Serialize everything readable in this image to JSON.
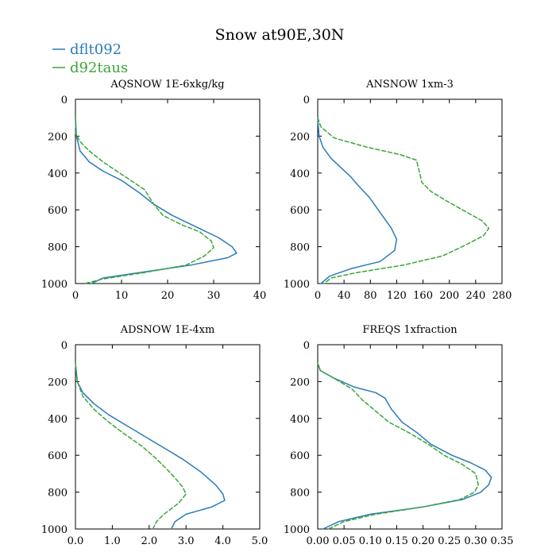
{
  "figure": {
    "title": "Snow at90E,30N",
    "legend": [
      {
        "label": "dflt092",
        "color": "#2b7bba",
        "dash": "solid"
      },
      {
        "label": "d92taus",
        "color": "#3aa637",
        "dash": "dashed"
      }
    ]
  },
  "chart_data": [
    {
      "type": "line",
      "title": "AQSNOW  1E-6xkg/kg",
      "xlim": [
        0,
        40
      ],
      "xticks": [
        0,
        10,
        20,
        30,
        40
      ],
      "xtick_labels": [
        "0",
        "10",
        "20",
        "30",
        "40"
      ],
      "ylim": [
        1000,
        0
      ],
      "yticks": [
        0,
        200,
        400,
        600,
        800,
        1000
      ],
      "series": [
        {
          "name": "dflt092",
          "points": [
            [
              0,
              100
            ],
            [
              0.2,
              200
            ],
            [
              1,
              280
            ],
            [
              3,
              340
            ],
            [
              6,
              390
            ],
            [
              10,
              440
            ],
            [
              14,
              510
            ],
            [
              17,
              570
            ],
            [
              21,
              630
            ],
            [
              26,
              690
            ],
            [
              31,
              750
            ],
            [
              34,
              800
            ],
            [
              35,
              835
            ],
            [
              33,
              860
            ],
            [
              25,
              900
            ],
            [
              14,
              940
            ],
            [
              6,
              970
            ],
            [
              3.5,
              1000
            ]
          ]
        },
        {
          "name": "d92taus",
          "points": [
            [
              0,
              100
            ],
            [
              0.1,
              190
            ],
            [
              1,
              230
            ],
            [
              3,
              280
            ],
            [
              6,
              340
            ],
            [
              9,
              390
            ],
            [
              12,
              440
            ],
            [
              15,
              490
            ],
            [
              17,
              570
            ],
            [
              19,
              630
            ],
            [
              23,
              680
            ],
            [
              27,
              720
            ],
            [
              29.5,
              770
            ],
            [
              30,
              805
            ],
            [
              28,
              850
            ],
            [
              24,
              900
            ],
            [
              15,
              940
            ],
            [
              6,
              975
            ],
            [
              2,
              1000
            ]
          ]
        }
      ]
    },
    {
      "type": "line",
      "title": "ANSNOW  1xm-3",
      "xlim": [
        0,
        280
      ],
      "xticks": [
        0,
        40,
        80,
        120,
        160,
        200,
        240,
        280
      ],
      "xtick_labels": [
        "0",
        "40",
        "80",
        "120",
        "160",
        "200",
        "240",
        "280"
      ],
      "ylim": [
        1000,
        0
      ],
      "yticks": [
        0,
        200,
        400,
        600,
        800,
        1000
      ],
      "series": [
        {
          "name": "dflt092",
          "points": [
            [
              0,
              100
            ],
            [
              2,
              200
            ],
            [
              8,
              260
            ],
            [
              20,
              320
            ],
            [
              35,
              370
            ],
            [
              50,
              420
            ],
            [
              62,
              470
            ],
            [
              78,
              530
            ],
            [
              96,
              620
            ],
            [
              112,
              700
            ],
            [
              120,
              760
            ],
            [
              117,
              820
            ],
            [
              95,
              880
            ],
            [
              50,
              920
            ],
            [
              18,
              960
            ],
            [
              5,
              1000
            ]
          ]
        },
        {
          "name": "d92taus",
          "points": [
            [
              0,
              100
            ],
            [
              5,
              150
            ],
            [
              25,
              210
            ],
            [
              75,
              260
            ],
            [
              125,
              300
            ],
            [
              150,
              330
            ],
            [
              155,
              400
            ],
            [
              158,
              450
            ],
            [
              172,
              500
            ],
            [
              195,
              550
            ],
            [
              225,
              610
            ],
            [
              250,
              660
            ],
            [
              260,
              700
            ],
            [
              252,
              740
            ],
            [
              225,
              790
            ],
            [
              190,
              850
            ],
            [
              130,
              900
            ],
            [
              60,
              940
            ],
            [
              20,
              970
            ],
            [
              10,
              1000
            ]
          ]
        }
      ]
    },
    {
      "type": "line",
      "title": "ADSNOW  1E-4xm",
      "xlim": [
        0,
        5
      ],
      "xticks": [
        0,
        1,
        2,
        3,
        4,
        5
      ],
      "xtick_labels": [
        "0.0",
        "1.0",
        "2.0",
        "3.0",
        "4.0",
        "5.0"
      ],
      "ylim": [
        1000,
        0
      ],
      "yticks": [
        0,
        200,
        400,
        600,
        800,
        1000
      ],
      "series": [
        {
          "name": "dflt092",
          "points": [
            [
              0,
              100
            ],
            [
              0.05,
              200
            ],
            [
              0.2,
              260
            ],
            [
              0.5,
              320
            ],
            [
              0.9,
              380
            ],
            [
              1.4,
              440
            ],
            [
              1.9,
              500
            ],
            [
              2.4,
              560
            ],
            [
              2.9,
              620
            ],
            [
              3.4,
              690
            ],
            [
              3.8,
              760
            ],
            [
              4.0,
              810
            ],
            [
              4.05,
              845
            ],
            [
              3.7,
              880
            ],
            [
              3.0,
              920
            ],
            [
              2.7,
              960
            ],
            [
              2.6,
              1000
            ]
          ]
        },
        {
          "name": "d92taus",
          "points": [
            [
              0,
              100
            ],
            [
              0.05,
              200
            ],
            [
              0.2,
              280
            ],
            [
              0.5,
              350
            ],
            [
              0.9,
              420
            ],
            [
              1.3,
              480
            ],
            [
              1.8,
              550
            ],
            [
              2.2,
              620
            ],
            [
              2.6,
              700
            ],
            [
              2.9,
              770
            ],
            [
              3.0,
              810
            ],
            [
              2.8,
              860
            ],
            [
              2.4,
              920
            ],
            [
              2.2,
              960
            ],
            [
              2.1,
              1000
            ]
          ]
        }
      ]
    },
    {
      "type": "line",
      "title": "FREQS  1xfraction",
      "xlim": [
        0,
        0.35
      ],
      "xticks": [
        0,
        0.05,
        0.1,
        0.15,
        0.2,
        0.25,
        0.3,
        0.35
      ],
      "xtick_labels": [
        "0.00",
        "0.05",
        "0.10",
        "0.15",
        "0.20",
        "0.25",
        "0.30",
        "0.35"
      ],
      "ylim": [
        1000,
        0
      ],
      "yticks": [
        0,
        200,
        400,
        600,
        800,
        1000
      ],
      "series": [
        {
          "name": "dflt092",
          "points": [
            [
              0,
              100
            ],
            [
              0.005,
              140
            ],
            [
              0.03,
              180
            ],
            [
              0.07,
              230
            ],
            [
              0.11,
              260
            ],
            [
              0.128,
              290
            ],
            [
              0.14,
              350
            ],
            [
              0.16,
              420
            ],
            [
              0.19,
              480
            ],
            [
              0.215,
              540
            ],
            [
              0.255,
              600
            ],
            [
              0.29,
              640
            ],
            [
              0.318,
              680
            ],
            [
              0.33,
              720
            ],
            [
              0.325,
              760
            ],
            [
              0.31,
              800
            ],
            [
              0.275,
              840
            ],
            [
              0.2,
              880
            ],
            [
              0.1,
              920
            ],
            [
              0.04,
              960
            ],
            [
              0.01,
              1000
            ]
          ]
        },
        {
          "name": "d92taus",
          "points": [
            [
              0,
              100
            ],
            [
              0.005,
              140
            ],
            [
              0.03,
              180
            ],
            [
              0.065,
              240
            ],
            [
              0.085,
              300
            ],
            [
              0.11,
              360
            ],
            [
              0.135,
              420
            ],
            [
              0.175,
              480
            ],
            [
              0.21,
              540
            ],
            [
              0.24,
              600
            ],
            [
              0.275,
              650
            ],
            [
              0.3,
              700
            ],
            [
              0.305,
              760
            ],
            [
              0.298,
              800
            ],
            [
              0.27,
              840
            ],
            [
              0.2,
              880
            ],
            [
              0.11,
              920
            ],
            [
              0.05,
              960
            ],
            [
              0.02,
              1000
            ]
          ]
        }
      ]
    }
  ]
}
